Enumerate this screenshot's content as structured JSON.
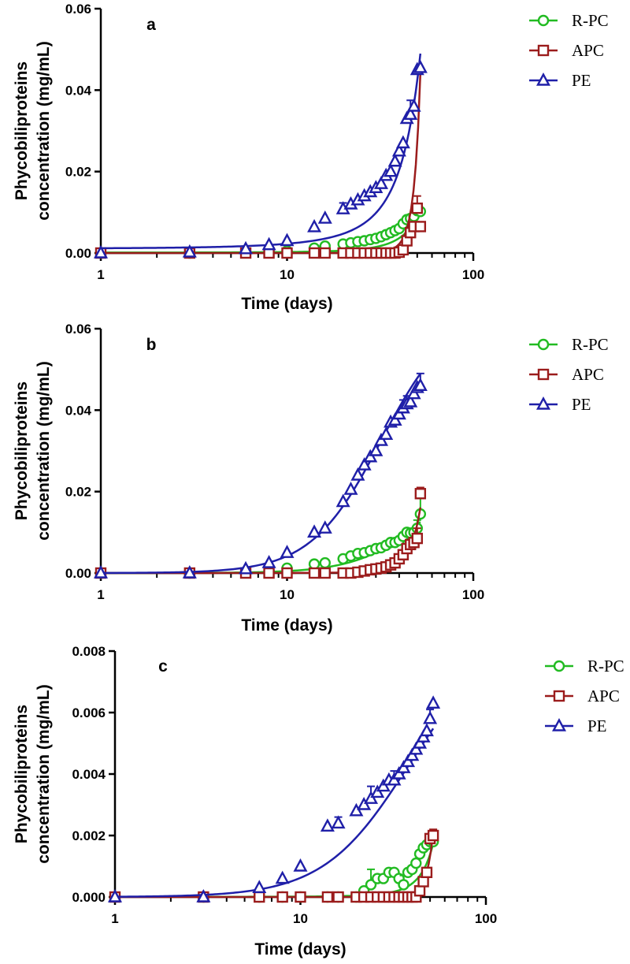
{
  "chart_data": [
    {
      "type": "scatter",
      "panel_label": "a",
      "x_scale": "log",
      "xlim": [
        1,
        100
      ],
      "ylim": [
        0,
        0.06
      ],
      "x_ticks": [
        1,
        10,
        100
      ],
      "x_tick_labels": [
        "1",
        "10",
        "100"
      ],
      "y_ticks": [
        0,
        0.02,
        0.04,
        0.06
      ],
      "y_tick_labels": [
        "0.00",
        "0.02",
        "0.04",
        "0.06"
      ],
      "xlabel": "Time (days)",
      "ylabel_lines": [
        "Phycobiliproteins",
        "concentration (mg/mL)"
      ],
      "legend_position": "top-right",
      "series": [
        {
          "name": "R-PC",
          "color": "#22bb22",
          "marker": "circle",
          "x": [
            1,
            3,
            6,
            8,
            10,
            14,
            16,
            20,
            22,
            24,
            26,
            28,
            30,
            32,
            34,
            36,
            38,
            40,
            42,
            44,
            46,
            48,
            50,
            52
          ],
          "y": [
            0,
            0,
            0.0002,
            0.0003,
            0.0005,
            0.0012,
            0.0017,
            0.0022,
            0.0025,
            0.0028,
            0.003,
            0.0033,
            0.0036,
            0.004,
            0.0045,
            0.005,
            0.0055,
            0.006,
            0.0072,
            0.0082,
            0.0085,
            0.009,
            0.0104,
            0.0102
          ],
          "err": [
            0,
            0,
            0,
            0,
            0,
            0,
            0,
            0,
            0,
            0,
            0,
            0,
            0,
            0,
            0,
            0,
            0,
            0,
            0,
            0,
            0,
            0,
            0.0005,
            0
          ],
          "fit": {
            "model": "exponential",
            "y0": 0.0001,
            "k": 0.09
          }
        },
        {
          "name": "APC",
          "color": "#9b1c1c",
          "marker": "square",
          "x": [
            1,
            3,
            6,
            8,
            10,
            14,
            16,
            20,
            22,
            24,
            26,
            28,
            30,
            32,
            34,
            36,
            38,
            40,
            42,
            44,
            46,
            48,
            50,
            52
          ],
          "y": [
            0,
            0,
            0,
            0,
            0,
            0,
            0,
            0,
            0,
            0,
            0,
            0,
            0,
            0,
            0,
            0,
            0,
            0.0002,
            0.0008,
            0.003,
            0.005,
            0.0065,
            0.011,
            0.0065
          ],
          "err": [
            0,
            0,
            0,
            0,
            0,
            0,
            0,
            0,
            0,
            0,
            0,
            0,
            0,
            0,
            0,
            0,
            0,
            0,
            0,
            0,
            0,
            0,
            0.003,
            0
          ],
          "fit": {
            "model": "exponential",
            "y0": 1e-07,
            "k": 0.25
          }
        },
        {
          "name": "PE",
          "color": "#1f1fa8",
          "marker": "triangle",
          "x": [
            1,
            3,
            6,
            8,
            10,
            14,
            16,
            20,
            22,
            24,
            26,
            28,
            30,
            32,
            34,
            36,
            38,
            40,
            42,
            44,
            46,
            48,
            50,
            52
          ],
          "y": [
            0,
            0.0002,
            0.001,
            0.002,
            0.003,
            0.0064,
            0.0085,
            0.0108,
            0.012,
            0.013,
            0.014,
            0.015,
            0.016,
            0.017,
            0.019,
            0.02,
            0.0225,
            0.025,
            0.027,
            0.033,
            0.034,
            0.036,
            0.045,
            0.0455
          ],
          "err": [
            0,
            0,
            0,
            0,
            0,
            0,
            0,
            0.0015,
            0,
            0,
            0,
            0,
            0,
            0,
            0,
            0,
            0,
            0,
            0,
            0,
            0.0035,
            0,
            0,
            0
          ],
          "fit": {
            "model": "exponential",
            "y0": 0.0011,
            "k": 0.073
          }
        }
      ]
    },
    {
      "type": "scatter",
      "panel_label": "b",
      "x_scale": "log",
      "xlim": [
        1,
        100
      ],
      "ylim": [
        0,
        0.06
      ],
      "x_ticks": [
        1,
        10,
        100
      ],
      "x_tick_labels": [
        "1",
        "10",
        "100"
      ],
      "y_ticks": [
        0,
        0.02,
        0.04,
        0.06
      ],
      "y_tick_labels": [
        "0.00",
        "0.02",
        "0.04",
        "0.06"
      ],
      "xlabel": "Time (days)",
      "ylabel_lines": [
        "Phycobiliproteins",
        "concentration (mg/mL)"
      ],
      "legend_position": "top-right",
      "series": [
        {
          "name": "R-PC",
          "color": "#22bb22",
          "marker": "circle",
          "x": [
            1,
            3,
            6,
            8,
            10,
            14,
            16,
            20,
            22,
            24,
            26,
            28,
            30,
            32,
            34,
            36,
            38,
            40,
            42,
            44,
            46,
            48,
            50,
            52
          ],
          "y": [
            0,
            0,
            0.0002,
            0.0005,
            0.0012,
            0.0022,
            0.0025,
            0.0035,
            0.0042,
            0.0048,
            0.005,
            0.0055,
            0.006,
            0.0062,
            0.0068,
            0.0075,
            0.0075,
            0.008,
            0.009,
            0.01,
            0.0098,
            0.01,
            0.011,
            0.0145
          ],
          "err": [
            0,
            0,
            0,
            0,
            0,
            0,
            0,
            0,
            0,
            0,
            0,
            0,
            0,
            0,
            0,
            0,
            0,
            0,
            0,
            0,
            0,
            0,
            0.002,
            0.004
          ],
          "fit": {
            "model": "sigmoid",
            "top": 0.03,
            "x50": 60,
            "hill": 2.3
          }
        },
        {
          "name": "APC",
          "color": "#9b1c1c",
          "marker": "square",
          "x": [
            1,
            3,
            6,
            8,
            10,
            14,
            16,
            20,
            22,
            24,
            26,
            28,
            30,
            32,
            34,
            36,
            38,
            40,
            42,
            44,
            46,
            48,
            50,
            52
          ],
          "y": [
            0,
            0,
            0,
            0,
            0,
            0,
            0,
            0,
            0,
            0.0002,
            0.0005,
            0.0008,
            0.001,
            0.0012,
            0.0015,
            0.002,
            0.0025,
            0.0035,
            0.0045,
            0.006,
            0.007,
            0.0075,
            0.0085,
            0.0195
          ],
          "err": [
            0,
            0,
            0,
            0,
            0,
            0,
            0,
            0,
            0,
            0,
            0,
            0,
            0,
            0,
            0,
            0,
            0,
            0,
            0,
            0,
            0,
            0,
            0.0025,
            0.0015
          ],
          "fit": {
            "model": "exponential",
            "y0": 6.6e-06,
            "k": 0.15
          }
        },
        {
          "name": "PE",
          "color": "#1f1fa8",
          "marker": "triangle",
          "x": [
            1,
            3,
            6,
            8,
            10,
            14,
            16,
            20,
            22,
            24,
            26,
            28,
            30,
            32,
            34,
            36,
            38,
            40,
            42,
            44,
            46,
            48,
            50,
            52
          ],
          "y": [
            0,
            0,
            0.001,
            0.0025,
            0.005,
            0.01,
            0.011,
            0.0175,
            0.0205,
            0.024,
            0.0265,
            0.0285,
            0.03,
            0.0325,
            0.034,
            0.037,
            0.0375,
            0.039,
            0.0405,
            0.0415,
            0.042,
            0.044,
            0.0455,
            0.046
          ],
          "err": [
            0,
            0,
            0,
            0,
            0,
            0,
            0,
            0,
            0,
            0,
            0,
            0,
            0,
            0,
            0,
            0,
            0,
            0,
            0.002,
            0.002,
            0,
            0,
            0,
            0.003
          ],
          "fit": {
            "model": "sigmoid",
            "top": 0.065,
            "x50": 32,
            "hill": 2.3
          }
        }
      ]
    },
    {
      "type": "scatter",
      "panel_label": "c",
      "x_scale": "log",
      "xlim": [
        1,
        100
      ],
      "ylim": [
        0,
        0.008
      ],
      "x_ticks": [
        1,
        10,
        100
      ],
      "x_tick_labels": [
        "1",
        "10",
        "100"
      ],
      "y_ticks": [
        0,
        0.002,
        0.004,
        0.006,
        0.008
      ],
      "y_tick_labels": [
        "0.000",
        "0.002",
        "0.004",
        "0.006",
        "0.008"
      ],
      "xlabel": "Time (days)",
      "ylabel_lines": [
        "Phycobiliproteins",
        "concentration (mg/mL)"
      ],
      "legend_position": "top-right",
      "series": [
        {
          "name": "R-PC",
          "color": "#22bb22",
          "marker": "circle",
          "x": [
            1,
            3,
            6,
            8,
            10,
            14,
            16,
            20,
            22,
            24,
            26,
            28,
            30,
            32,
            34,
            36,
            38,
            40,
            42,
            44,
            46,
            48,
            50,
            52
          ],
          "y": [
            0,
            0,
            0,
            0,
            0,
            0,
            0,
            0,
            0.0002,
            0.0004,
            0.0006,
            0.0006,
            0.0008,
            0.0008,
            0.0006,
            0.0004,
            0.0008,
            0.0009,
            0.0011,
            0.0014,
            0.0016,
            0.0017,
            0.0018,
            0.0018
          ],
          "err": [
            0,
            0,
            0,
            0,
            0,
            0,
            0,
            0,
            0,
            0.0005,
            0,
            0,
            0,
            0,
            0,
            0.0003,
            0,
            0,
            0,
            0,
            0,
            0,
            0,
            0
          ],
          "fit": {
            "model": "exponential",
            "y0": 4.4e-06,
            "k": 0.115
          }
        },
        {
          "name": "APC",
          "color": "#9b1c1c",
          "marker": "square",
          "x": [
            1,
            3,
            6,
            8,
            10,
            14,
            16,
            20,
            22,
            24,
            26,
            28,
            30,
            32,
            34,
            36,
            38,
            40,
            42,
            44,
            46,
            48,
            50,
            52
          ],
          "y": [
            0,
            0,
            0,
            0,
            0,
            0,
            0,
            0,
            0,
            0,
            0,
            0,
            0,
            0,
            0,
            0,
            0,
            0,
            0,
            0.0002,
            0.0005,
            0.0008,
            0.0019,
            0.002
          ],
          "err": [
            0,
            0,
            0,
            0,
            0,
            0,
            0,
            0,
            0,
            0,
            0,
            0,
            0,
            0,
            0,
            0,
            0,
            0,
            0,
            0,
            0,
            0,
            0,
            0.0002
          ],
          "fit": {
            "model": "exponential",
            "y0": 8.1e-09,
            "k": 0.24
          }
        },
        {
          "name": "PE",
          "color": "#1f1fa8",
          "marker": "triangle",
          "x": [
            1,
            3,
            6,
            8,
            10,
            14,
            16,
            20,
            22,
            24,
            26,
            28,
            30,
            32,
            34,
            36,
            38,
            40,
            42,
            44,
            46,
            48,
            50,
            52
          ],
          "y": [
            0,
            0,
            0.0003,
            0.0006,
            0.001,
            0.0023,
            0.0024,
            0.0028,
            0.003,
            0.0032,
            0.0034,
            0.0036,
            0.0038,
            0.0038,
            0.004,
            0.0042,
            0.0044,
            0.0046,
            0.0048,
            0.005,
            0.0052,
            0.0054,
            0.0058,
            0.0063
          ],
          "err": [
            0,
            0,
            0,
            0,
            0,
            0,
            0.0002,
            0,
            0,
            0.0004,
            0,
            0,
            0,
            0.0003,
            0,
            0,
            0,
            0,
            0,
            0,
            0,
            0,
            0.0003,
            0
          ],
          "fit": {
            "model": "sigmoid",
            "top": 0.0085,
            "x50": 38,
            "hill": 1.9
          }
        }
      ]
    }
  ]
}
